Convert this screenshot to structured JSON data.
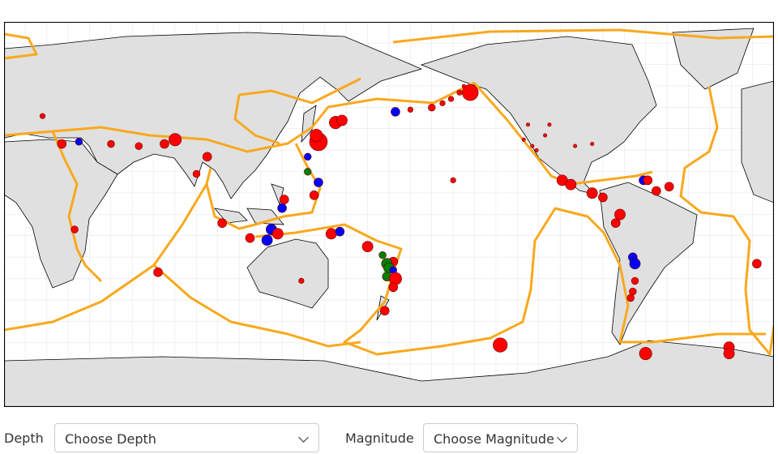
{
  "filters": [
    {
      "label": "Depth",
      "placeholder": "Choose Depth"
    },
    {
      "label": "Magnitude",
      "placeholder": "Choose Magnitude"
    }
  ],
  "quakes": [
    {
      "lon": 142,
      "lat": 37,
      "mag": 8,
      "color": "#ff0000"
    },
    {
      "lon": 141,
      "lat": 40,
      "mag": 6.5,
      "color": "#ff0000"
    },
    {
      "lon": 150,
      "lat": 46,
      "mag": 6.5,
      "color": "#ff0000"
    },
    {
      "lon": 153,
      "lat": 47,
      "mag": 6,
      "color": "#ff0000"
    },
    {
      "lon": 178,
      "lat": 51,
      "mag": 5.5,
      "color": "#0000ff"
    },
    {
      "lon": -175,
      "lat": 52,
      "mag": 4.5,
      "color": "#ff0000"
    },
    {
      "lon": -165,
      "lat": 53,
      "mag": 5,
      "color": "#ff0000"
    },
    {
      "lon": -160,
      "lat": 55,
      "mag": 4.5,
      "color": "#ff0000"
    },
    {
      "lon": -156,
      "lat": 57,
      "mag": 4.5,
      "color": "#ff0000"
    },
    {
      "lon": -152,
      "lat": 60,
      "mag": 4.5,
      "color": "#ff0000"
    },
    {
      "lon": -147,
      "lat": 60,
      "mag": 7.5,
      "color": "#ff0000"
    },
    {
      "lon": -150,
      "lat": 63,
      "mag": 4,
      "color": "#ff0000"
    },
    {
      "lon": 137,
      "lat": 30,
      "mag": 5,
      "color": "#0000ff"
    },
    {
      "lon": 137,
      "lat": 23,
      "mag": 5,
      "color": "#008000"
    },
    {
      "lon": 142,
      "lat": 18,
      "mag": 5.5,
      "color": "#0000ff"
    },
    {
      "lon": 140,
      "lat": 12,
      "mag": 5.5,
      "color": "#ff0000"
    },
    {
      "lon": 126,
      "lat": 10,
      "mag": 5.5,
      "color": "#ff0000"
    },
    {
      "lon": 125,
      "lat": 6,
      "mag": 5.5,
      "color": "#0000ff"
    },
    {
      "lon": 120,
      "lat": -4,
      "mag": 6,
      "color": "#0000ff"
    },
    {
      "lon": 123,
      "lat": -6,
      "mag": 6,
      "color": "#ff0000"
    },
    {
      "lon": 118,
      "lat": -9,
      "mag": 6,
      "color": "#0000ff"
    },
    {
      "lon": 110,
      "lat": -8,
      "mag": 5.5,
      "color": "#ff0000"
    },
    {
      "lon": 97,
      "lat": -1,
      "mag": 5.5,
      "color": "#ff0000"
    },
    {
      "lon": 148,
      "lat": -6,
      "mag": 6,
      "color": "#ff0000"
    },
    {
      "lon": 152,
      "lat": -5,
      "mag": 5.5,
      "color": "#0000ff"
    },
    {
      "lon": 165,
      "lat": -12,
      "mag": 6,
      "color": "#ff0000"
    },
    {
      "lon": 172,
      "lat": -16,
      "mag": 5,
      "color": "#008000"
    },
    {
      "lon": 177,
      "lat": -19,
      "mag": 5.5,
      "color": "#ff0000"
    },
    {
      "lon": 174,
      "lat": -20,
      "mag": 6,
      "color": "#008000"
    },
    {
      "lon": 175,
      "lat": -22,
      "mag": 6,
      "color": "#008000"
    },
    {
      "lon": 177,
      "lat": -23,
      "mag": 5,
      "color": "#0000ff"
    },
    {
      "lon": 174,
      "lat": -26,
      "mag": 5.5,
      "color": "#008000"
    },
    {
      "lon": 178,
      "lat": -27,
      "mag": 6.5,
      "color": "#ff0000"
    },
    {
      "lon": 177,
      "lat": -31,
      "mag": 5.5,
      "color": "#ff0000"
    },
    {
      "lon": 173,
      "lat": -42,
      "mag": 5.5,
      "color": "#ff0000"
    },
    {
      "lon": -155,
      "lat": 19,
      "mag": 4.5,
      "color": "#ff0000"
    },
    {
      "lon": -122,
      "lat": 38,
      "mag": 4,
      "color": "#ff0000"
    },
    {
      "lon": -118,
      "lat": 35,
      "mag": 4,
      "color": "#ff0000"
    },
    {
      "lon": -116,
      "lat": 33,
      "mag": 4,
      "color": "#ff0000"
    },
    {
      "lon": -120,
      "lat": 45,
      "mag": 4,
      "color": "#ff0000"
    },
    {
      "lon": -112,
      "lat": 40,
      "mag": 4,
      "color": "#ff0000"
    },
    {
      "lon": -110,
      "lat": 45,
      "mag": 4,
      "color": "#ff0000"
    },
    {
      "lon": -98,
      "lat": 35,
      "mag": 4,
      "color": "#ff0000"
    },
    {
      "lon": -90,
      "lat": 36,
      "mag": 4,
      "color": "#ff0000"
    },
    {
      "lon": -104,
      "lat": 19,
      "mag": 6,
      "color": "#ff0000"
    },
    {
      "lon": -100,
      "lat": 17,
      "mag": 6,
      "color": "#ff0000"
    },
    {
      "lon": -90,
      "lat": 13,
      "mag": 6,
      "color": "#ff0000"
    },
    {
      "lon": -85,
      "lat": 11,
      "mag": 5.5,
      "color": "#ff0000"
    },
    {
      "lon": -66,
      "lat": 19,
      "mag": 5.5,
      "color": "#0000ff"
    },
    {
      "lon": -64,
      "lat": 19,
      "mag": 5.5,
      "color": "#ff0000"
    },
    {
      "lon": -77,
      "lat": 3,
      "mag": 6,
      "color": "#ff0000"
    },
    {
      "lon": -79,
      "lat": -1,
      "mag": 5.5,
      "color": "#ff0000"
    },
    {
      "lon": -60,
      "lat": 14,
      "mag": 5.5,
      "color": "#ff0000"
    },
    {
      "lon": -54,
      "lat": 16,
      "mag": 5.5,
      "color": "#ff0000"
    },
    {
      "lon": -71,
      "lat": -17,
      "mag": 5.5,
      "color": "#0000ff"
    },
    {
      "lon": -70,
      "lat": -20,
      "mag": 6,
      "color": "#0000ff"
    },
    {
      "lon": -70,
      "lat": -28,
      "mag": 5,
      "color": "#ff0000"
    },
    {
      "lon": -71,
      "lat": -33,
      "mag": 5,
      "color": "#ff0000"
    },
    {
      "lon": -72,
      "lat": -36,
      "mag": 5,
      "color": "#ff0000"
    },
    {
      "lon": -133,
      "lat": -58,
      "mag": 7,
      "color": "#ff0000"
    },
    {
      "lon": -65,
      "lat": -62,
      "mag": 6.5,
      "color": "#ff0000"
    },
    {
      "lon": -26,
      "lat": -59,
      "mag": 6,
      "color": "#ff0000"
    },
    {
      "lon": -26,
      "lat": -62,
      "mag": 6,
      "color": "#ff0000"
    },
    {
      "lon": -13,
      "lat": -20,
      "mag": 5.5,
      "color": "#ff0000"
    },
    {
      "lon": 13,
      "lat": 49,
      "mag": 4.5,
      "color": "#ff0000"
    },
    {
      "lon": 22,
      "lat": 36,
      "mag": 5.5,
      "color": "#ff0000"
    },
    {
      "lon": 30,
      "lat": 37,
      "mag": 5,
      "color": "#0000ff"
    },
    {
      "lon": 45,
      "lat": 36,
      "mag": 5,
      "color": "#ff0000"
    },
    {
      "lon": 58,
      "lat": 35,
      "mag": 5,
      "color": "#ff0000"
    },
    {
      "lon": 70,
      "lat": 36,
      "mag": 5.5,
      "color": "#ff0000"
    },
    {
      "lon": 75,
      "lat": 38,
      "mag": 6.5,
      "color": "#ff0000"
    },
    {
      "lon": 90,
      "lat": 30,
      "mag": 5.5,
      "color": "#ff0000"
    },
    {
      "lon": 85,
      "lat": 22,
      "mag": 5,
      "color": "#ff0000"
    },
    {
      "lon": 28,
      "lat": -4,
      "mag": 5,
      "color": "#ff0000"
    },
    {
      "lon": 67,
      "lat": -24,
      "mag": 5.5,
      "color": "#ff0000"
    },
    {
      "lon": 134,
      "lat": -28,
      "mag": 4.5,
      "color": "#ff0000"
    }
  ]
}
